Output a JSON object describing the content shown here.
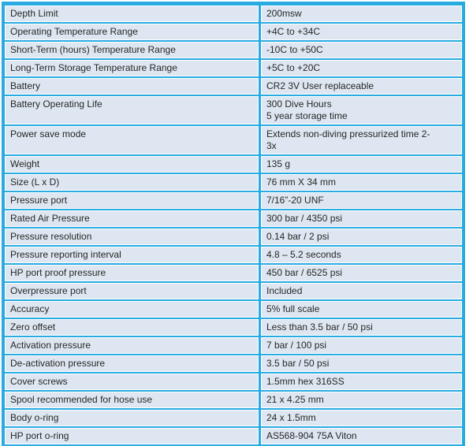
{
  "colors": {
    "table_border": "#29ABE2",
    "row_fill": "#DEE7F1",
    "text": "#262626"
  },
  "table": {
    "rows": [
      {
        "key": "Depth Limit",
        "value": "200msw"
      },
      {
        "key": "Operating Temperature Range",
        "value": "+4C to +34C"
      },
      {
        "key": "Short-Term (hours) Temperature Range",
        "value": "-10C to +50C"
      },
      {
        "key": "Long-Term Storage Temperature Range",
        "value": "+5C to +20C"
      },
      {
        "key": "Battery",
        "value": "CR2 3V User replaceable"
      },
      {
        "key": "Battery Operating Life",
        "value": "300 Dive Hours\n5 year storage time"
      },
      {
        "key": "Power save mode",
        "value": "Extends non-diving pressurized time 2-\n3x"
      },
      {
        "key": "Weight",
        "value": "135 g"
      },
      {
        "key": "Size (L x D)",
        "value": "76 mm X 34 mm"
      },
      {
        "key": "Pressure port",
        "value": "7/16”-20 UNF"
      },
      {
        "key": "Rated Air Pressure",
        "value": "300 bar / 4350 psi"
      },
      {
        "key": "Pressure resolution",
        "value": "0.14 bar / 2 psi"
      },
      {
        "key": "Pressure reporting interval",
        "value": "4.8 – 5.2 seconds"
      },
      {
        "key": "HP port proof pressure",
        "value": "450 bar / 6525 psi"
      },
      {
        "key": "Overpressure port",
        "value": "Included"
      },
      {
        "key": "Accuracy",
        "value": "5% full scale"
      },
      {
        "key": "Zero offset",
        "value": "Less than 3.5 bar / 50 psi"
      },
      {
        "key": "Activation pressure",
        "value": "7 bar / 100 psi"
      },
      {
        "key": "De-activation pressure",
        "value": "3.5 bar / 50 psi"
      },
      {
        "key": "Cover screws",
        "value": "1.5mm hex 316SS"
      },
      {
        "key": "Spool recommended for hose use",
        "value": "21 x 4.25 mm"
      },
      {
        "key": "Body o-ring",
        "value": "24 x 1.5mm"
      },
      {
        "key": "HP port o-ring",
        "value": "AS568-904 75A Viton"
      }
    ]
  }
}
